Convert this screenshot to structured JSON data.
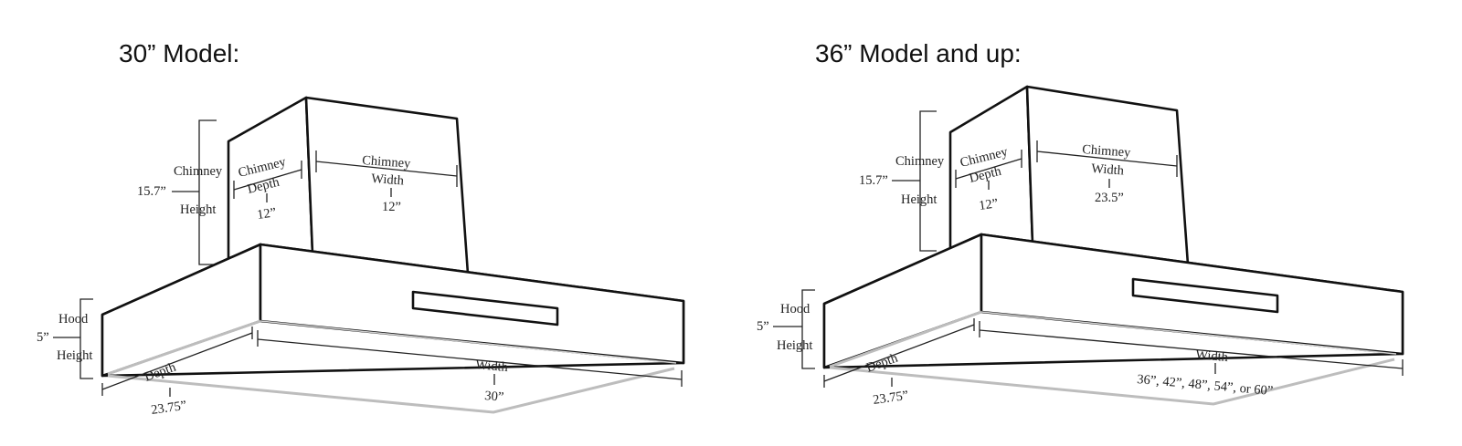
{
  "models": [
    {
      "title": "30” Model:",
      "chimney_label_1": "Chimney",
      "chimney_label_2": "Height",
      "chimney_height": "15.7”",
      "chimney_depth_label_1": "Chimney",
      "chimney_depth_label_2": "Depth",
      "chimney_depth": "12”",
      "chimney_width_label_1": "Chimney",
      "chimney_width_label_2": "Width",
      "chimney_width": "12”",
      "hood_label_1": "Hood",
      "hood_label_2": "Height",
      "hood_height": "5”",
      "depth_label": "Depth",
      "depth": "23.75”",
      "width_label": "Width",
      "width": "30”"
    },
    {
      "title": "36” Model and up:",
      "chimney_label_1": "Chimney",
      "chimney_label_2": "Height",
      "chimney_height": "15.7”",
      "chimney_depth_label_1": "Chimney",
      "chimney_depth_label_2": "Depth",
      "chimney_depth": "12”",
      "chimney_width_label_1": "Chimney",
      "chimney_width_label_2": "Width",
      "chimney_width": "23.5”",
      "hood_label_1": "Hood",
      "hood_label_2": "Height",
      "hood_height": "5”",
      "depth_label": "Depth",
      "depth": "23.75”",
      "width_label": "Width",
      "width": "36”, 42”, 48”, 54”, or 60”"
    }
  ]
}
